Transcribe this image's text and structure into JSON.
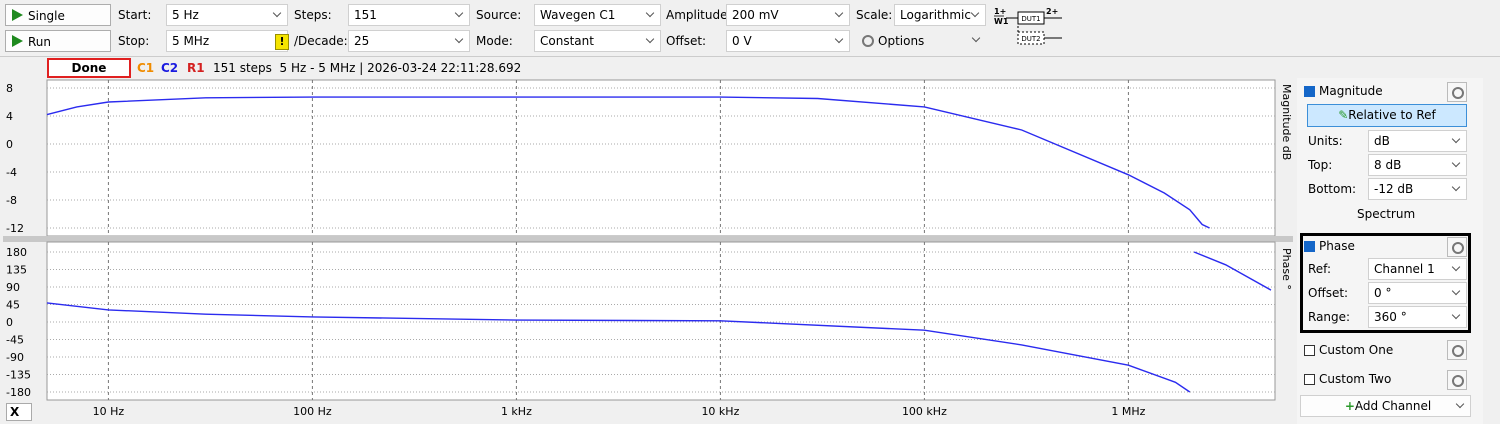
{
  "toolbar": {
    "single": "Single",
    "run": "Run",
    "start_label": "Start:",
    "start": "5 Hz",
    "stop_label": "Stop:",
    "stop": "5 MHz",
    "warning": "!",
    "steps_label": "Steps:",
    "steps": "151",
    "decade_label": "/Decade:",
    "decade": "25",
    "source_label": "Source:",
    "source": "Wavegen C1",
    "mode_label": "Mode:",
    "mode": "Constant",
    "amplitude_label": "Amplitude:",
    "amplitude": "200 mV",
    "offset_label": "Offset:",
    "offset": "0 V",
    "scale_label": "Scale:",
    "scale": "Logarithmic",
    "options": "Options",
    "circuit": {
      "in1": "1+",
      "w1": "W1",
      "dut1": "DUT1",
      "in2": "2+",
      "dut2": "DUT2"
    }
  },
  "status": {
    "state": "Done",
    "c1": "C1",
    "c2": "C2",
    "r1": "R1",
    "info": "151 steps  5 Hz - 5 MHz | 2026-03-24 22:11:28.692"
  },
  "x_axis": {
    "button": "X",
    "xlim": [
      5,
      5000000
    ],
    "xticks": [
      {
        "value": 10,
        "label": "10 Hz"
      },
      {
        "value": 100,
        "label": "100 Hz"
      },
      {
        "value": 1000,
        "label": "1 kHz"
      },
      {
        "value": 10000,
        "label": "10 kHz"
      },
      {
        "value": 100000,
        "label": "100 kHz"
      },
      {
        "value": 1000000,
        "label": "1 MHz"
      }
    ]
  },
  "magnitude_plot": {
    "axis_title": "Magnitude dB",
    "ylim": [
      -12,
      8
    ],
    "yticks": [
      8,
      4,
      0,
      -4,
      -8,
      -12
    ],
    "color": "#2b2bef",
    "x": [
      5,
      7,
      10,
      30,
      100,
      1000,
      10000,
      30000,
      100000,
      300000,
      1000000,
      1500000,
      2000000,
      2300000,
      2500000
    ],
    "values": [
      4.2,
      5.3,
      6,
      6.6,
      6.7,
      6.7,
      6.7,
      6.5,
      5.3,
      2,
      -4.4,
      -7,
      -9.4,
      -11.5,
      -12
    ]
  },
  "phase_plot": {
    "axis_title": "Phase °",
    "ylim": [
      -180,
      180
    ],
    "yticks": [
      180,
      135,
      90,
      45,
      0,
      -45,
      -90,
      -135,
      -180
    ],
    "color": "#2b2bef",
    "x": [
      5,
      10,
      30,
      100,
      1000,
      10000,
      100000,
      300000,
      1000000,
      1700000,
      2000000,
      2050000,
      2100000,
      3000000,
      5000000
    ],
    "values": [
      49,
      31,
      20,
      13,
      5,
      3,
      -21,
      -59,
      -111,
      -155,
      -180,
      null,
      180,
      147,
      82
    ]
  },
  "panel": {
    "magnitude": {
      "title": "Magnitude",
      "relative": "Relative to Ref",
      "units_label": "Units:",
      "units": "dB",
      "top_label": "Top:",
      "top": "8 dB",
      "bottom_label": "Bottom:",
      "bottom": "-12 dB",
      "spectrum": "Spectrum"
    },
    "phase": {
      "title": "Phase",
      "ref_label": "Ref:",
      "ref": "Channel 1",
      "offset_label": "Offset:",
      "offset": "0 °",
      "range_label": "Range:",
      "range": "360 °"
    },
    "custom_one": "Custom One",
    "custom_two": "Custom Two",
    "add_channel": "Add Channel"
  }
}
